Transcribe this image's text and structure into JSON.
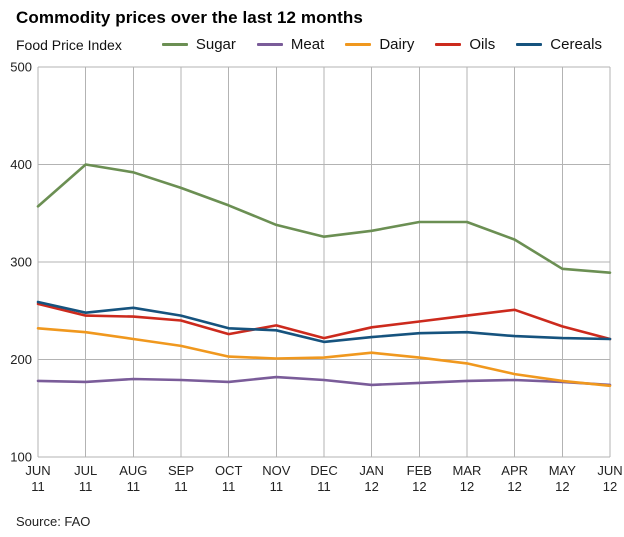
{
  "header": {
    "title": "Commodity prices over the last 12 months",
    "subtitle": "Food Price Index"
  },
  "footer": {
    "source": "Source: FAO"
  },
  "chart_data": {
    "type": "line",
    "title": "Commodity prices over the last 12 months",
    "index_label": "Food Price Index",
    "source": "Source: FAO",
    "grid": true,
    "legend_position": "top",
    "categories": [
      "JUN 11",
      "JUL 11",
      "AUG 11",
      "SEP 11",
      "OCT 11",
      "NOV 11",
      "DEC 11",
      "JAN 12",
      "FEB 12",
      "MAR 12",
      "APR 12",
      "MAY 12",
      "JUN 12"
    ],
    "ylim": [
      100,
      500
    ],
    "yticks": [
      100,
      200,
      300,
      400,
      500
    ],
    "grid_color": "#b3b3b3",
    "series": [
      {
        "name": "Sugar",
        "color": "#6b8f53",
        "values": [
          357,
          400,
          392,
          376,
          358,
          338,
          326,
          332,
          341,
          341,
          323,
          293,
          289
        ]
      },
      {
        "name": "Meat",
        "color": "#7a5c99",
        "values": [
          178,
          177,
          180,
          179,
          177,
          182,
          179,
          174,
          176,
          178,
          179,
          177,
          174
        ]
      },
      {
        "name": "Dairy",
        "color": "#f0981e",
        "values": [
          232,
          228,
          221,
          214,
          203,
          201,
          202,
          207,
          202,
          196,
          185,
          178,
          173
        ]
      },
      {
        "name": "Oils",
        "color": "#cc2a1d",
        "values": [
          257,
          245,
          244,
          240,
          226,
          235,
          222,
          233,
          239,
          245,
          251,
          234,
          221
        ]
      },
      {
        "name": "Cereals",
        "color": "#16537e",
        "values": [
          259,
          248,
          253,
          245,
          232,
          230,
          218,
          223,
          227,
          228,
          224,
          222,
          221
        ]
      }
    ]
  }
}
